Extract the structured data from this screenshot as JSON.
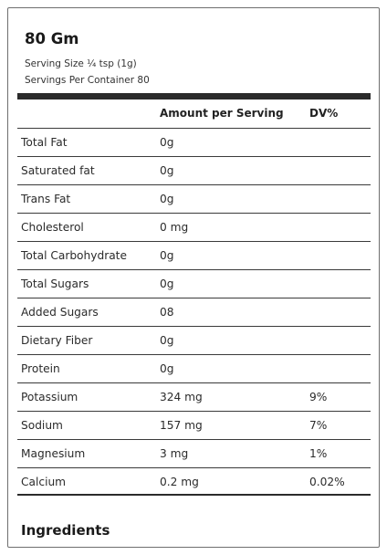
{
  "title": "80 Gm",
  "serving_size": "Serving Size ¼ tsp (1g)",
  "servings_per_container": "Servings Per Container 80",
  "headers": {
    "amount": "Amount per Serving",
    "dv": "DV%"
  },
  "rows": [
    {
      "name": "Total Fat",
      "amount": "0g",
      "dv": ""
    },
    {
      "name": "Saturated fat",
      "amount": "0g",
      "dv": ""
    },
    {
      "name": "Trans Fat",
      "amount": "0g",
      "dv": ""
    },
    {
      "name": "Cholesterol",
      "amount": "0 mg",
      "dv": ""
    },
    {
      "name": "Total Carbohydrate",
      "amount": "0g",
      "dv": ""
    },
    {
      "name": "Total Sugars",
      "amount": "0g",
      "dv": ""
    },
    {
      "name": "Added Sugars",
      "amount": "08",
      "dv": ""
    },
    {
      "name": "Dietary Fiber",
      "amount": "0g",
      "dv": ""
    },
    {
      "name": "Protein",
      "amount": "0g",
      "dv": ""
    },
    {
      "name": "Potassium",
      "amount": "324 mg",
      "dv": "9%"
    },
    {
      "name": "Sodium",
      "amount": "157 mg",
      "dv": "7%"
    },
    {
      "name": "Magnesium",
      "amount": "3 mg",
      "dv": "1%"
    },
    {
      "name": "Calcium",
      "amount": "0.2 mg",
      "dv": "0.02%"
    }
  ],
  "ingredients_heading": "Ingredients"
}
